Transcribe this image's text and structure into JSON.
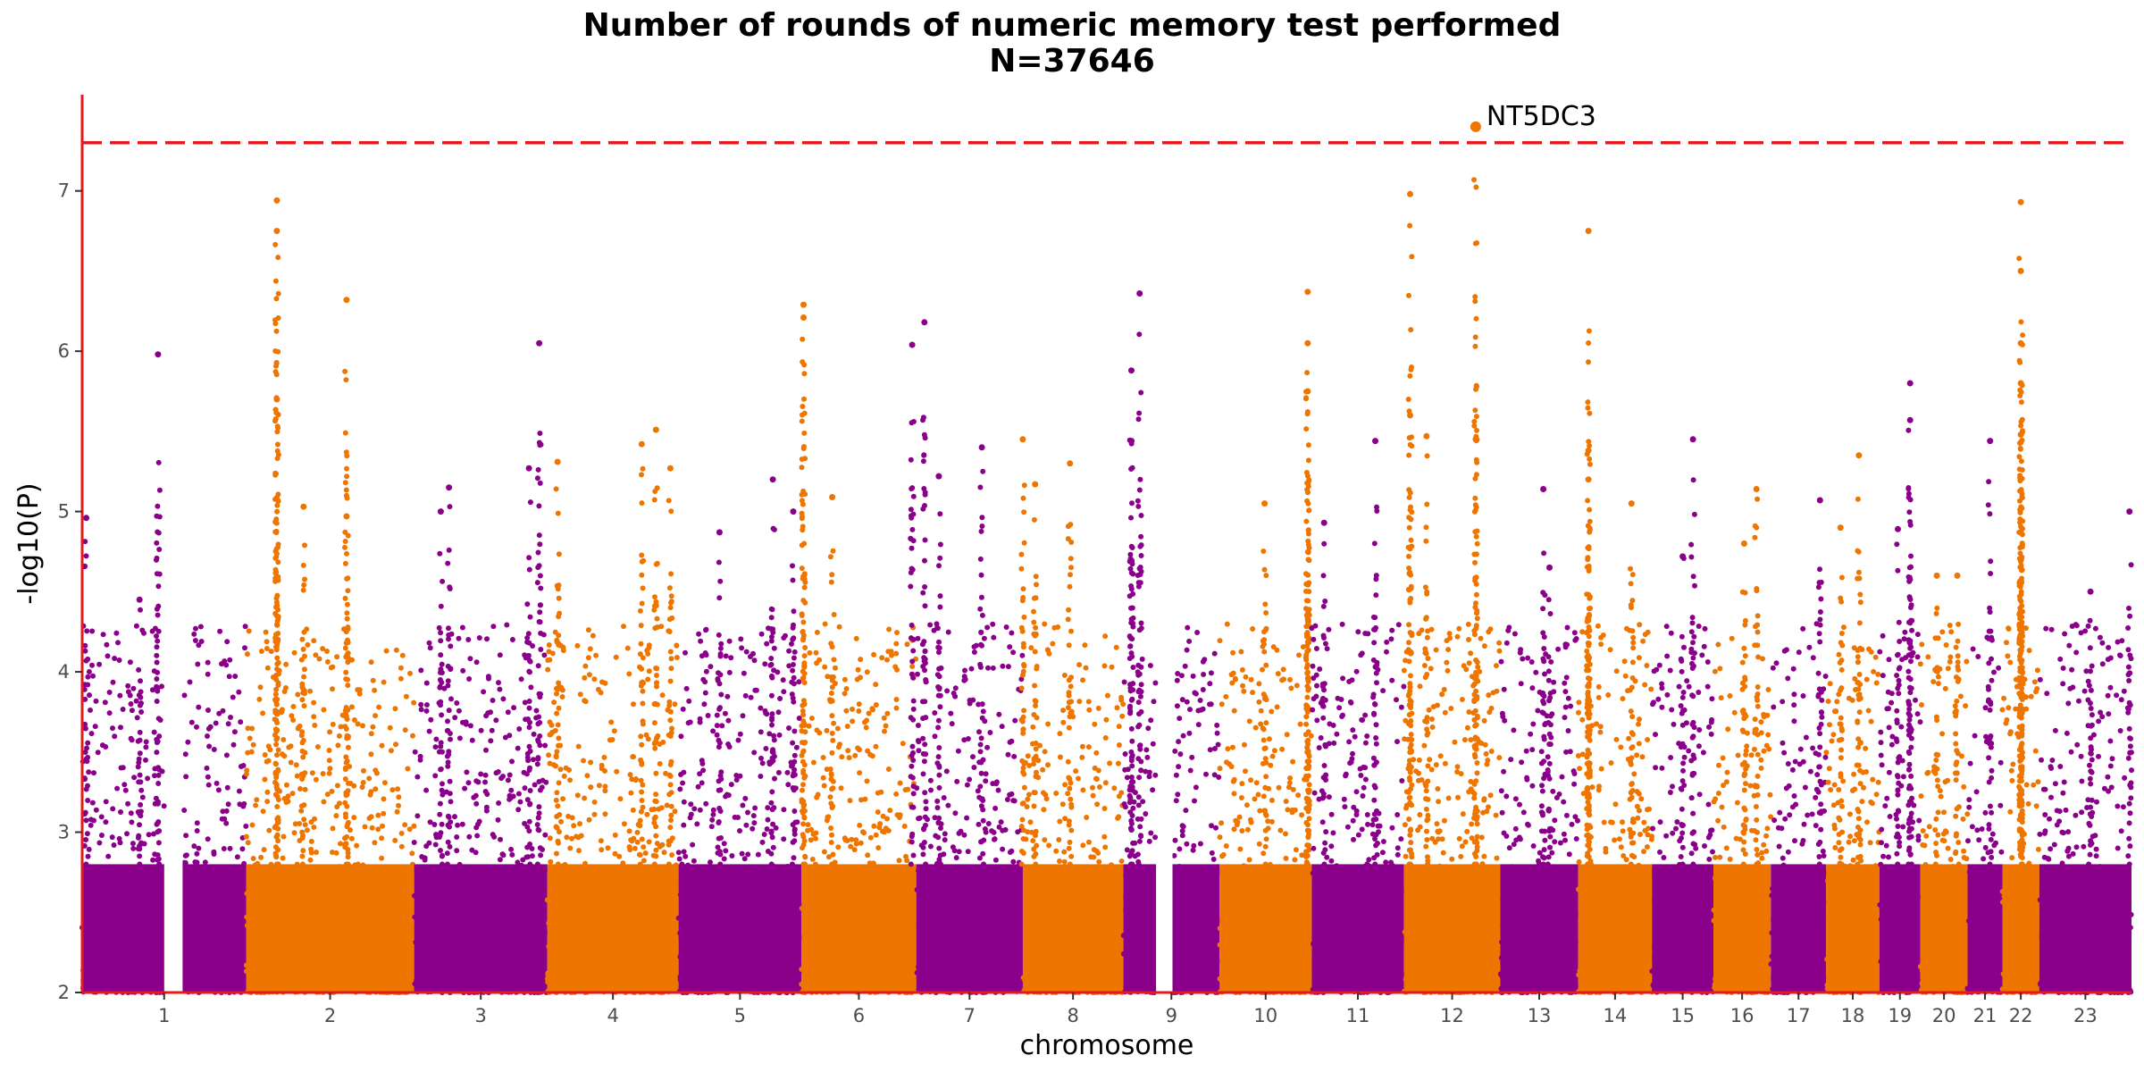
{
  "chart_data": {
    "type": "scatter",
    "subtype": "manhattan",
    "title": "Number of rounds of numeric memory test performed",
    "subtitle": "N=37646",
    "xlabel": "chromosome",
    "ylabel": "-log10(P)",
    "ylim": [
      2,
      7.6
    ],
    "yticks": [
      2,
      3,
      4,
      5,
      6,
      7
    ],
    "significance_line": 7.3,
    "grid": false,
    "colors": {
      "odd": "#8B008B",
      "even": "#EE7600",
      "line": "#E41A1C",
      "axis": "#E41A1C"
    },
    "chromosomes": [
      {
        "label": "1",
        "start": 0.0,
        "end": 0.08,
        "gap": [
          0.04,
          0.049
        ],
        "peaks": [
          [
            0.002,
            4.96
          ],
          [
            0.037,
            5.98
          ],
          [
            0.028,
            4.45
          ]
        ]
      },
      {
        "label": "2",
        "start": 0.08,
        "end": 0.162,
        "peaks": [
          [
            0.095,
            6.94
          ],
          [
            0.095,
            6.75
          ],
          [
            0.095,
            5.7
          ],
          [
            0.129,
            6.32
          ],
          [
            0.129,
            4.97
          ],
          [
            0.108,
            5.03
          ]
        ]
      },
      {
        "label": "3",
        "start": 0.162,
        "end": 0.227,
        "peaks": [
          [
            0.223,
            6.05
          ],
          [
            0.218,
            5.27
          ],
          [
            0.179,
            5.15
          ],
          [
            0.175,
            5.0
          ]
        ]
      },
      {
        "label": "4",
        "start": 0.227,
        "end": 0.291,
        "peaks": [
          [
            0.232,
            5.31
          ],
          [
            0.28,
            5.51
          ],
          [
            0.273,
            5.42
          ],
          [
            0.287,
            5.27
          ]
        ]
      },
      {
        "label": "5",
        "start": 0.291,
        "end": 0.351,
        "peaks": [
          [
            0.337,
            5.2
          ],
          [
            0.347,
            5.0
          ],
          [
            0.311,
            4.87
          ]
        ]
      },
      {
        "label": "6",
        "start": 0.351,
        "end": 0.407,
        "peaks": [
          [
            0.352,
            6.29
          ],
          [
            0.352,
            6.21
          ],
          [
            0.366,
            5.09
          ]
        ]
      },
      {
        "label": "7",
        "start": 0.407,
        "end": 0.459,
        "peaks": [
          [
            0.405,
            6.04
          ],
          [
            0.411,
            6.18
          ],
          [
            0.418,
            5.22
          ],
          [
            0.439,
            5.4
          ]
        ]
      },
      {
        "label": "8",
        "start": 0.459,
        "end": 0.508,
        "peaks": [
          [
            0.459,
            5.45
          ],
          [
            0.482,
            5.3
          ],
          [
            0.465,
            5.17
          ]
        ]
      },
      {
        "label": "9",
        "start": 0.508,
        "end": 0.555,
        "gap": [
          0.524,
          0.532
        ],
        "peaks": [
          [
            0.516,
            6.36
          ],
          [
            0.512,
            5.88
          ],
          [
            0.512,
            5.44
          ]
        ]
      },
      {
        "label": "10",
        "start": 0.555,
        "end": 0.6,
        "peaks": [
          [
            0.598,
            6.37
          ],
          [
            0.598,
            6.05
          ],
          [
            0.598,
            5.75
          ],
          [
            0.577,
            5.05
          ]
        ]
      },
      {
        "label": "11",
        "start": 0.6,
        "end": 0.645,
        "peaks": [
          [
            0.631,
            5.44
          ],
          [
            0.606,
            4.93
          ]
        ]
      },
      {
        "label": "12",
        "start": 0.645,
        "end": 0.692,
        "peaks": [
          [
            0.648,
            6.98
          ],
          [
            0.648,
            5.6
          ],
          [
            0.656,
            5.47
          ],
          [
            0.68,
            7.4
          ],
          [
            0.68,
            5.45
          ]
        ]
      },
      {
        "label": "13",
        "start": 0.692,
        "end": 0.73,
        "peaks": [
          [
            0.713,
            5.14
          ],
          [
            0.716,
            4.65
          ]
        ]
      },
      {
        "label": "14",
        "start": 0.73,
        "end": 0.766,
        "peaks": [
          [
            0.735,
            6.75
          ],
          [
            0.735,
            5.38
          ],
          [
            0.735,
            5.2
          ],
          [
            0.756,
            5.05
          ]
        ]
      },
      {
        "label": "15",
        "start": 0.766,
        "end": 0.796,
        "peaks": [
          [
            0.786,
            5.45
          ],
          [
            0.781,
            4.72
          ]
        ]
      },
      {
        "label": "16",
        "start": 0.796,
        "end": 0.824,
        "peaks": [
          [
            0.817,
            5.14
          ],
          [
            0.811,
            4.8
          ]
        ]
      },
      {
        "label": "17",
        "start": 0.824,
        "end": 0.851,
        "peaks": [
          [
            0.848,
            5.07
          ]
        ]
      },
      {
        "label": "18",
        "start": 0.851,
        "end": 0.877,
        "peaks": [
          [
            0.867,
            5.35
          ],
          [
            0.858,
            4.9
          ]
        ]
      },
      {
        "label": "19",
        "start": 0.877,
        "end": 0.897,
        "peaks": [
          [
            0.892,
            5.8
          ],
          [
            0.892,
            5.57
          ],
          [
            0.886,
            4.89
          ]
        ]
      },
      {
        "label": "20",
        "start": 0.897,
        "end": 0.92,
        "peaks": [
          [
            0.905,
            4.6
          ],
          [
            0.915,
            4.6
          ]
        ]
      },
      {
        "label": "21",
        "start": 0.92,
        "end": 0.937,
        "peaks": [
          [
            0.931,
            5.44
          ]
        ]
      },
      {
        "label": "22",
        "start": 0.937,
        "end": 0.955,
        "peaks": [
          [
            0.946,
            6.93
          ],
          [
            0.946,
            6.5
          ],
          [
            0.946,
            6.05
          ],
          [
            0.946,
            5.8
          ],
          [
            0.946,
            5.48
          ]
        ]
      },
      {
        "label": "23",
        "start": 0.955,
        "end": 1.0,
        "peaks": [
          [
            0.98,
            4.5
          ],
          [
            0.999,
            5.0
          ]
        ]
      }
    ],
    "annotations": [
      {
        "label": "NT5DC3",
        "x": 0.68,
        "y": 7.4
      }
    ]
  }
}
